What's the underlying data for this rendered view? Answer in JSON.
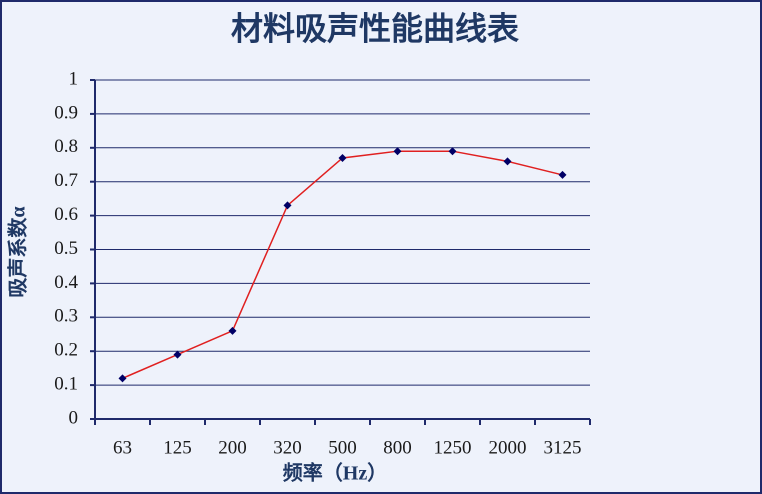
{
  "chart_data": {
    "type": "line",
    "title": "材料吸声性能曲线表",
    "x_label": "频率（Hz）",
    "y_label": "吸声系数α",
    "categories": [
      "63",
      "125",
      "200",
      "320",
      "500",
      "800",
      "1250",
      "2000",
      "3125"
    ],
    "series": [
      {
        "color": "#e02020",
        "marker_color": "#000066",
        "values": [
          0.12,
          0.19,
          0.26,
          0.63,
          0.77,
          0.79,
          0.79,
          0.76,
          0.72
        ]
      }
    ],
    "ylim": [
      0,
      1
    ],
    "yticks": [
      0,
      0.1,
      0.2,
      0.3,
      0.4,
      0.5,
      0.6,
      0.7,
      0.8,
      0.9,
      1
    ],
    "grid": true
  }
}
